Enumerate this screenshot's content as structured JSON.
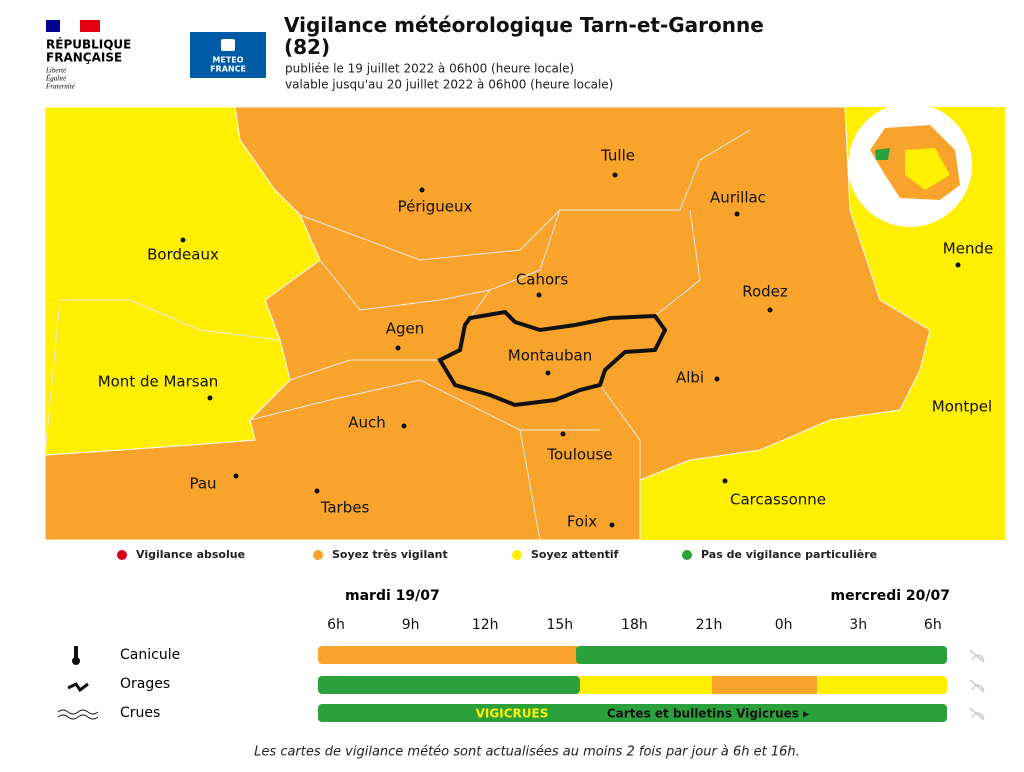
{
  "header": {
    "republic": [
      "RÉPUBLIQUE",
      "FRANÇAISE"
    ],
    "motto": [
      "Liberté",
      "Égalité",
      "Fraternité"
    ],
    "logo": [
      "METEO",
      "FRANCE"
    ],
    "title": "Vigilance météorologique Tarn-et-Garonne (82)",
    "published": "publiée le 19 juillet 2022 à 06h00 (heure locale)",
    "valid": "valable jusqu'au 20 juillet 2022 à 06h00 (heure locale)"
  },
  "map": {
    "cities": [
      "Tulle",
      "Périgueux",
      "Aurillac",
      "Bordeaux",
      "Mende",
      "Cahors",
      "Rodez",
      "Agen",
      "Montauban",
      "Albi",
      "Mont de Marsan",
      "Montpel",
      "Auch",
      "Toulouse",
      "Pau",
      "Tarbes",
      "Carcassonne",
      "Foix"
    ]
  },
  "legend": [
    "Vigilance absolue",
    "Soyez très vigilant",
    "Soyez attentif",
    "Pas de vigilance particulière"
  ],
  "timeline": {
    "days": [
      "mardi 19/07",
      "mercredi 20/07"
    ],
    "hours": [
      "6h",
      "9h",
      "12h",
      "15h",
      "18h",
      "21h",
      "0h",
      "3h",
      "6h"
    ],
    "rows": [
      "Canicule",
      "Orages",
      "Crues"
    ],
    "vigicrues": "VIGICRUES",
    "vigicrues_link": "Cartes et bulletins Vigicrues ▸"
  },
  "footer": "Les cartes de vigilance météo sont actualisées au moins 2 fois par jour à 6h et 16h."
}
